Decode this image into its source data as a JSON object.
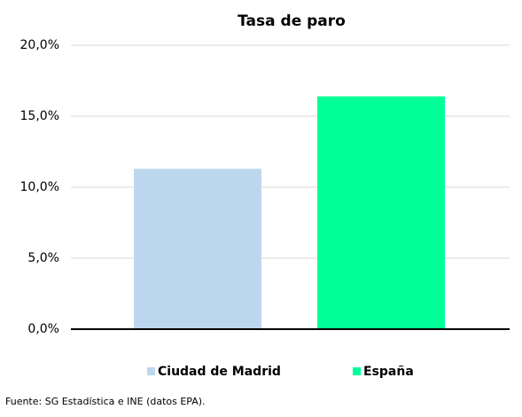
{
  "chart_data": {
    "type": "bar",
    "title": "Tasa de paro",
    "categories": [
      "Ciudad de Madrid",
      "España"
    ],
    "values": [
      11.3,
      16.4
    ],
    "colors": [
      "#bdd7ee",
      "#00ff99"
    ],
    "ylim": [
      0,
      20
    ],
    "yticks": [
      {
        "value": 0,
        "label": "0,0%"
      },
      {
        "value": 5,
        "label": "5,0%"
      },
      {
        "value": 10,
        "label": "10,0%"
      },
      {
        "value": 15,
        "label": "15,0%"
      },
      {
        "value": 20,
        "label": "20,0%"
      }
    ],
    "grid": true,
    "legend": "bottom",
    "source": "Fuente: SG Estadística e INE (datos EPA)."
  }
}
